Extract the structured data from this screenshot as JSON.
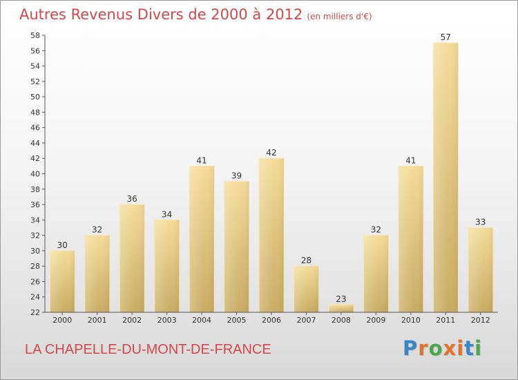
{
  "header": {
    "title": "Autres Revenus Divers de 2000 à 2012",
    "subtitle": "(en milliers d'€)"
  },
  "footer": {
    "place": "LA CHAPELLE-DU-MONT-DE-FRANCE",
    "brand": "Proxiti"
  },
  "colors": {
    "title": "#d2484a",
    "bar_light": "#f4dc9a",
    "bar_dark": "#c9ab62",
    "brand_letters": [
      "#3a86c8",
      "#e0742c",
      "#4aa84a",
      "#e0742c",
      "#e0742c",
      "#3a86c8",
      "#4aa84a"
    ]
  },
  "chart_data": {
    "type": "bar",
    "categories": [
      "2000",
      "2001",
      "2002",
      "2003",
      "2004",
      "2005",
      "2006",
      "2007",
      "2008",
      "2009",
      "2010",
      "2011",
      "2012"
    ],
    "values": [
      30,
      32,
      36,
      34,
      41,
      39,
      42,
      28,
      23,
      32,
      41,
      57,
      33
    ],
    "ylim": [
      22,
      58
    ],
    "yticks": [
      22,
      24,
      26,
      28,
      30,
      32,
      34,
      36,
      38,
      40,
      42,
      44,
      46,
      48,
      50,
      52,
      54,
      56,
      58
    ],
    "grid": false,
    "legend": "none",
    "data_labels": true
  }
}
